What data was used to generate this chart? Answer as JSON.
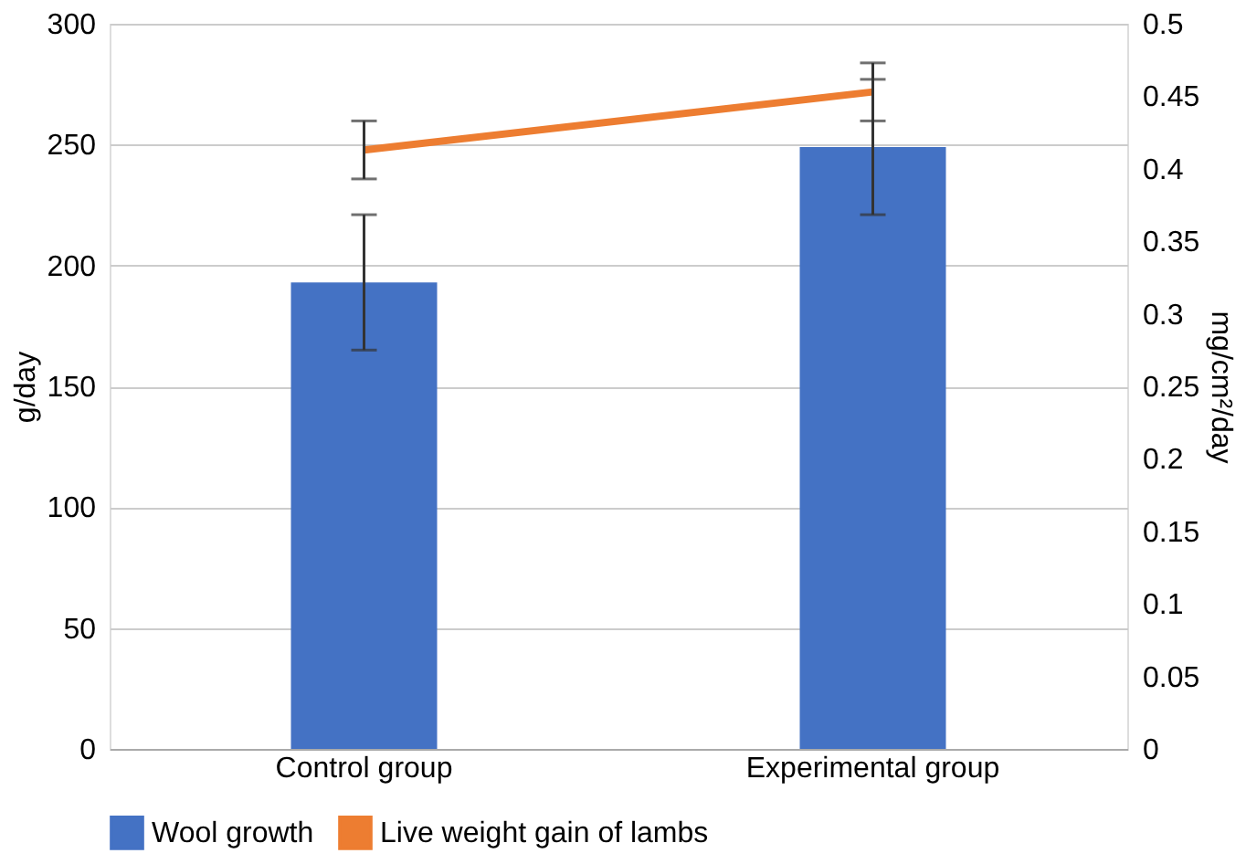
{
  "chart_data": {
    "type": "bar",
    "categories": [
      "Control group",
      "Experimental group"
    ],
    "series": [
      {
        "name": "Wool growth",
        "color": "#4472c4",
        "values": [
          193,
          249
        ],
        "errors": [
          28,
          28
        ]
      },
      {
        "name": "Live weight gain of lambs",
        "type": "line",
        "axis": "y2",
        "color": "#ed7d31",
        "values": [
          0.413,
          0.453
        ],
        "errors": [
          0.02,
          0.02
        ]
      }
    ],
    "ylabel": "g/day",
    "y2label": "mg/cm²/day",
    "ylim": [
      0,
      300
    ],
    "yticks": [
      0,
      50,
      100,
      150,
      200,
      250,
      300
    ],
    "y2lim": [
      0,
      0.5
    ],
    "y2ticks": [
      0,
      0.05,
      0.1,
      0.15,
      0.2,
      0.25,
      0.3,
      0.35,
      0.4,
      0.45,
      0.5
    ],
    "grid": "y",
    "legend": "bottom"
  }
}
